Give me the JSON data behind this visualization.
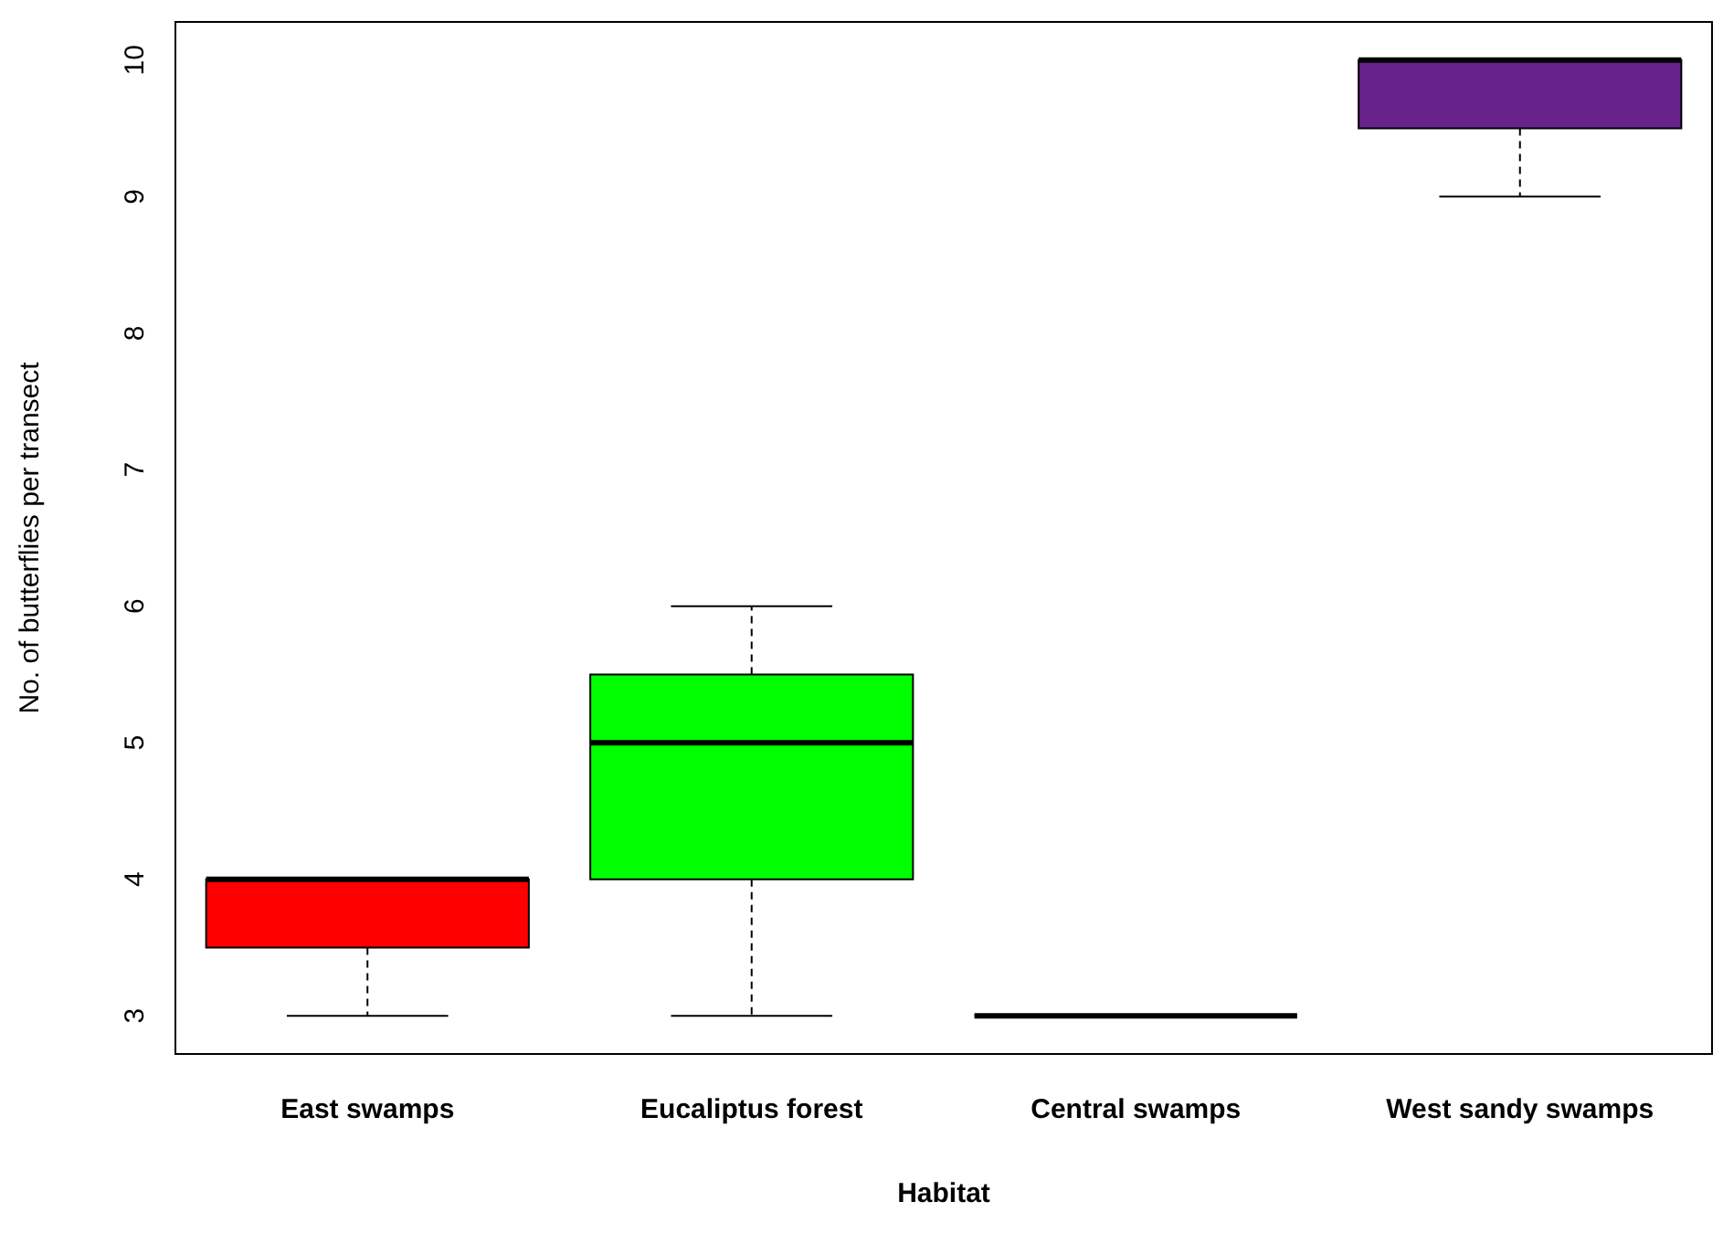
{
  "chart_data": {
    "type": "box",
    "xlabel": "Habitat",
    "ylabel": "No. of butterflies per transect",
    "categories": [
      "East swamps",
      "Eucaliptus forest",
      "Central swamps",
      "West sandy swamps"
    ],
    "colors": [
      "#ff0000",
      "#00ff00",
      "#000000",
      "#68228b"
    ],
    "boxes": [
      {
        "low": 3,
        "q1": 3.5,
        "median": 4,
        "q3": 4,
        "high": 4
      },
      {
        "low": 3,
        "q1": 4,
        "median": 5,
        "q3": 5.5,
        "high": 6
      },
      {
        "low": 3,
        "q1": 3,
        "median": 3,
        "q3": 3,
        "high": 3
      },
      {
        "low": 9,
        "q1": 9.5,
        "median": 10,
        "q3": 10,
        "high": 10
      }
    ],
    "ylim": [
      2.72,
      10.28
    ],
    "yticks": [
      3,
      4,
      5,
      6,
      7,
      8,
      9,
      10
    ]
  }
}
